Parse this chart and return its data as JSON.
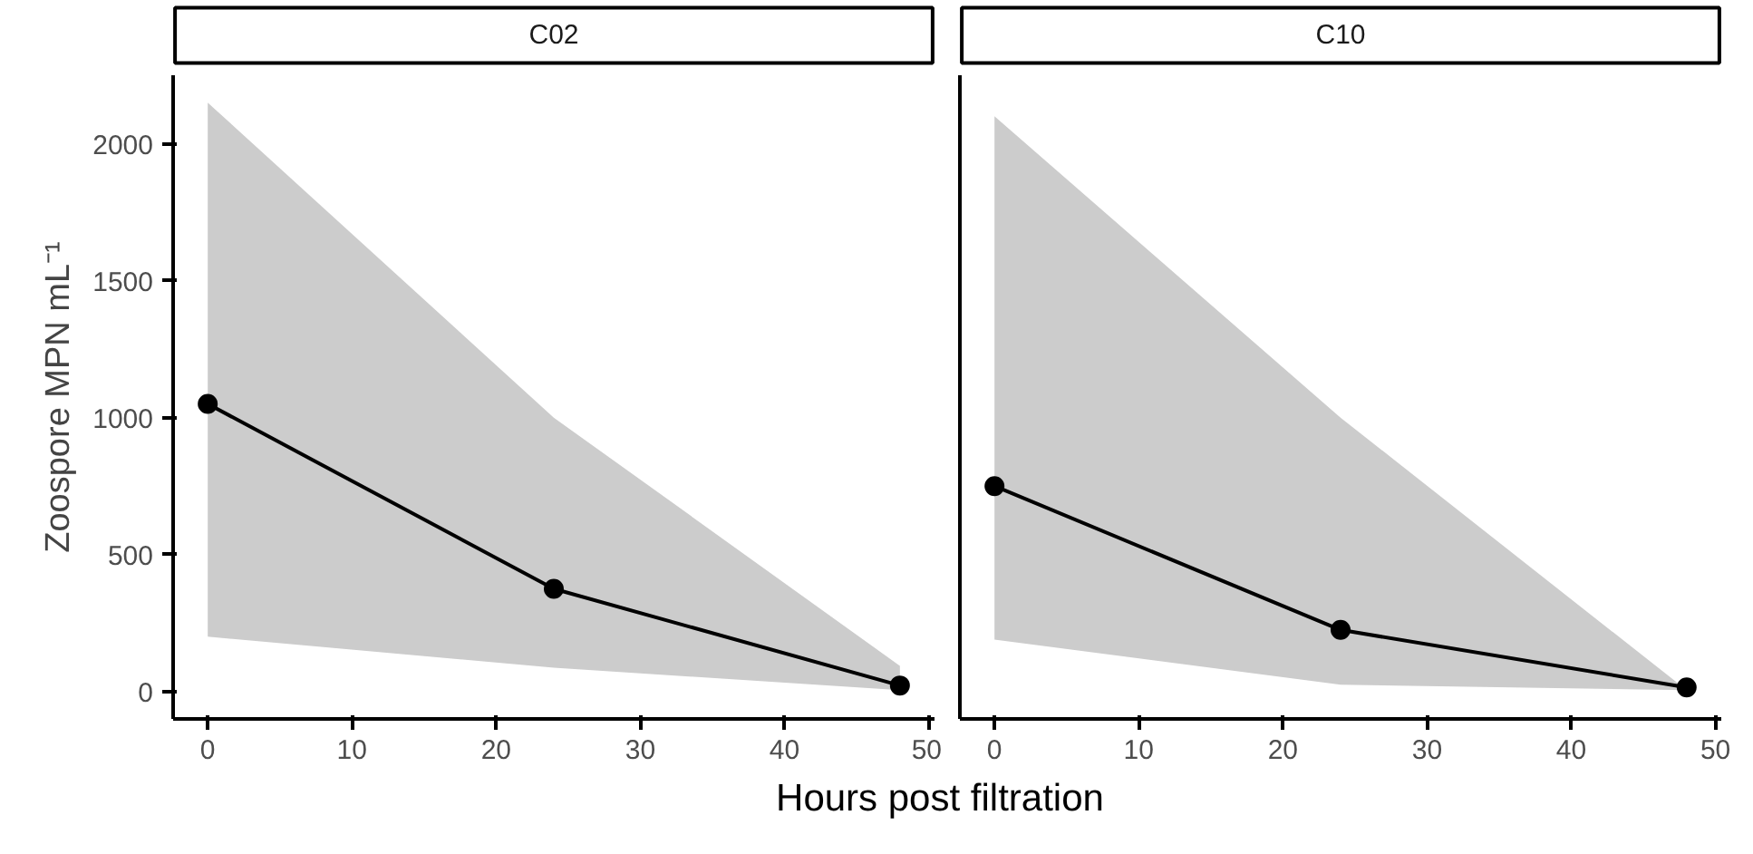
{
  "chart_data": [
    {
      "type": "line",
      "title": "C02",
      "ylabel": "Zoospore MPN mL⁻¹",
      "xlabel": "Hours post filtration",
      "x": [
        0,
        24,
        48
      ],
      "series": [
        {
          "color": "#000000",
          "values": [
            1050,
            375,
            22
          ],
          "lower": [
            200,
            87,
            5
          ],
          "upper": [
            2150,
            1000,
            94
          ]
        }
      ],
      "xlim": [
        -2.4,
        50.4
      ],
      "xticks": [
        0,
        10,
        20,
        30,
        40,
        50
      ],
      "ylim": [
        -100,
        2250
      ],
      "yticks": [
        0,
        500,
        1000,
        1500,
        2000
      ],
      "grid": false,
      "marker": "circle",
      "line_style": "solid"
    },
    {
      "type": "line",
      "title": "C10",
      "x": [
        0,
        24,
        48
      ],
      "series": [
        {
          "color": "#000000",
          "values": [
            750,
            225,
            15
          ],
          "lower": [
            190,
            25,
            5
          ],
          "upper": [
            2100,
            1000,
            5
          ]
        }
      ],
      "xlim": [
        -2.4,
        50.4
      ],
      "xticks": [
        0,
        10,
        20,
        30,
        40,
        50
      ],
      "ylim": [
        -100,
        2250
      ],
      "yticks": [
        0,
        500,
        1000,
        1500,
        2000
      ],
      "grid": false,
      "marker": "circle",
      "line_style": "solid",
      "tick_labels": "x"
    }
  ]
}
